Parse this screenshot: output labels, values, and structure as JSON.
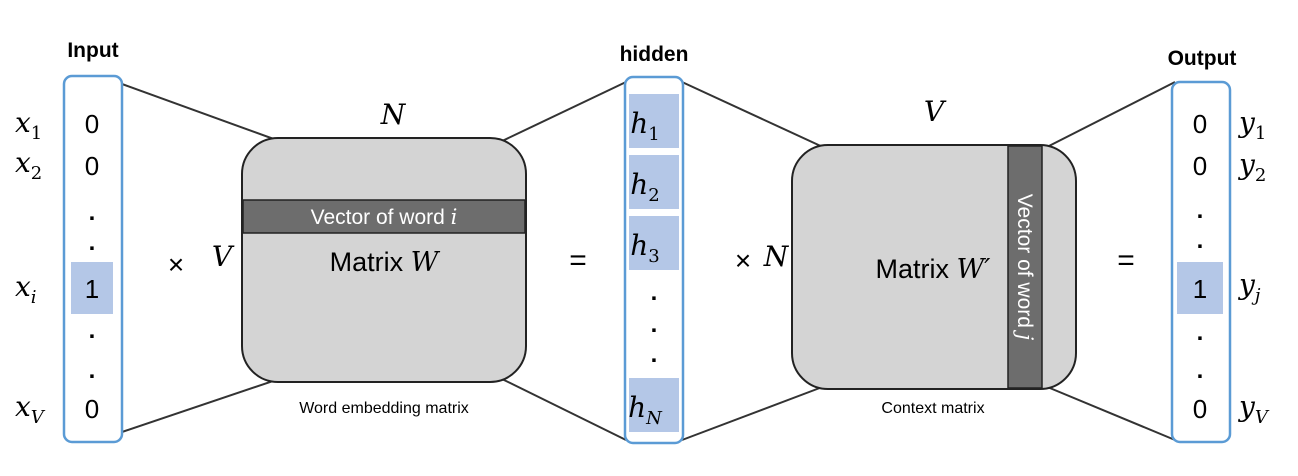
{
  "input": {
    "title": "Input",
    "labels": [
      "x",
      "x",
      "x",
      "x"
    ],
    "label_subs": [
      "1",
      "2",
      "i",
      "V"
    ],
    "values": [
      "0",
      "0",
      "1",
      "0"
    ],
    "dots": ".",
    "colors": {
      "frame": "#5b9bd5",
      "highlight": "#b4c7e7"
    }
  },
  "times_left": "×",
  "matrix_w": {
    "label_main": "Matrix ",
    "label_var": "W",
    "top_dim": "N",
    "side_dim": "V",
    "row_label_text": "Vector of word ",
    "row_label_var": "i",
    "caption": "Word embedding matrix",
    "colors": {
      "fill": "#d4d4d4",
      "band": "#6d6d6d"
    }
  },
  "equals_left": "=",
  "hidden": {
    "title": "hidden",
    "cells": [
      {
        "var": "h",
        "sub": "1"
      },
      {
        "var": "h",
        "sub": "2"
      },
      {
        "var": "h",
        "sub": "3"
      },
      {
        "var": "h",
        "sub": "N"
      }
    ],
    "dots": "."
  },
  "times_right": "×",
  "matrix_w2": {
    "label_main": "Matrix ",
    "label_var": "W′",
    "top_dim": "V",
    "side_dim": "N",
    "col_label_text": "Vector of word ",
    "col_label_var": "j",
    "caption": "Context matrix"
  },
  "equals_right": "=",
  "output": {
    "title": "Output",
    "labels": [
      "y",
      "y",
      "y",
      "y"
    ],
    "label_subs": [
      "1",
      "2",
      "j",
      "V"
    ],
    "values": [
      "0",
      "0",
      "1",
      "0"
    ],
    "dots": "."
  }
}
